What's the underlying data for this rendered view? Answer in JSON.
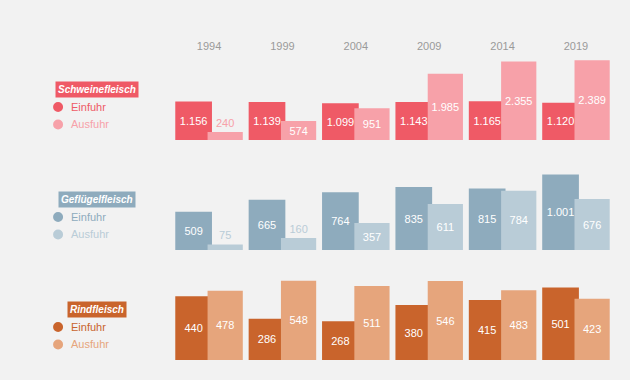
{
  "chart_data": [
    {
      "type": "bar",
      "title": "Schweinefleisch",
      "categories": [
        "1994",
        "1999",
        "2004",
        "2009",
        "2014",
        "2019"
      ],
      "series": [
        {
          "name": "Einfuhr",
          "color": "#ef5a66",
          "values": [
            1156,
            1139,
            1099,
            1143,
            1165,
            1120
          ],
          "value_labels": [
            "1.156",
            "1.139",
            "1.099",
            "1.143",
            "1.165",
            "1.120"
          ]
        },
        {
          "name": "Ausfuhr",
          "color": "#f7a1a9",
          "values": [
            240,
            574,
            951,
            1985,
            2355,
            2389
          ],
          "value_labels": [
            "240",
            "574",
            "951",
            "1.985",
            "2.355",
            "2.389"
          ]
        }
      ],
      "ylim": [
        0,
        2600
      ],
      "data_labels": true,
      "tick_labels": "x",
      "legend": "left"
    },
    {
      "type": "bar",
      "title": "Geflügelfleisch",
      "categories": [
        "1994",
        "1999",
        "2004",
        "2009",
        "2014",
        "2019"
      ],
      "series": [
        {
          "name": "Einfuhr",
          "color": "#8eabbd",
          "values": [
            509,
            665,
            764,
            835,
            815,
            1001
          ],
          "value_labels": [
            "509",
            "665",
            "764",
            "835",
            "815",
            "1.001"
          ]
        },
        {
          "name": "Ausfuhr",
          "color": "#b9ccd7",
          "values": [
            75,
            160,
            357,
            611,
            784,
            676
          ],
          "value_labels": [
            "75",
            "160",
            "357",
            "611",
            "784",
            "676"
          ]
        }
      ],
      "ylim": [
        0,
        1150
      ],
      "data_labels": true,
      "tick_labels": false,
      "legend": "left"
    },
    {
      "type": "bar",
      "title": "Rindfleisch",
      "categories": [
        "1994",
        "1999",
        "2004",
        "2009",
        "2014",
        "2019"
      ],
      "series": [
        {
          "name": "Einfuhr",
          "color": "#c9642c",
          "values": [
            440,
            286,
            268,
            380,
            415,
            501
          ],
          "value_labels": [
            "440",
            "286",
            "268",
            "380",
            "415",
            "501"
          ]
        },
        {
          "name": "Ausfuhr",
          "color": "#e6a57c",
          "values": [
            478,
            548,
            511,
            546,
            483,
            423
          ],
          "value_labels": [
            "478",
            "548",
            "511",
            "546",
            "483",
            "423"
          ]
        }
      ],
      "ylim": [
        0,
        600
      ],
      "data_labels": true,
      "tick_labels": false,
      "legend": "left"
    }
  ]
}
